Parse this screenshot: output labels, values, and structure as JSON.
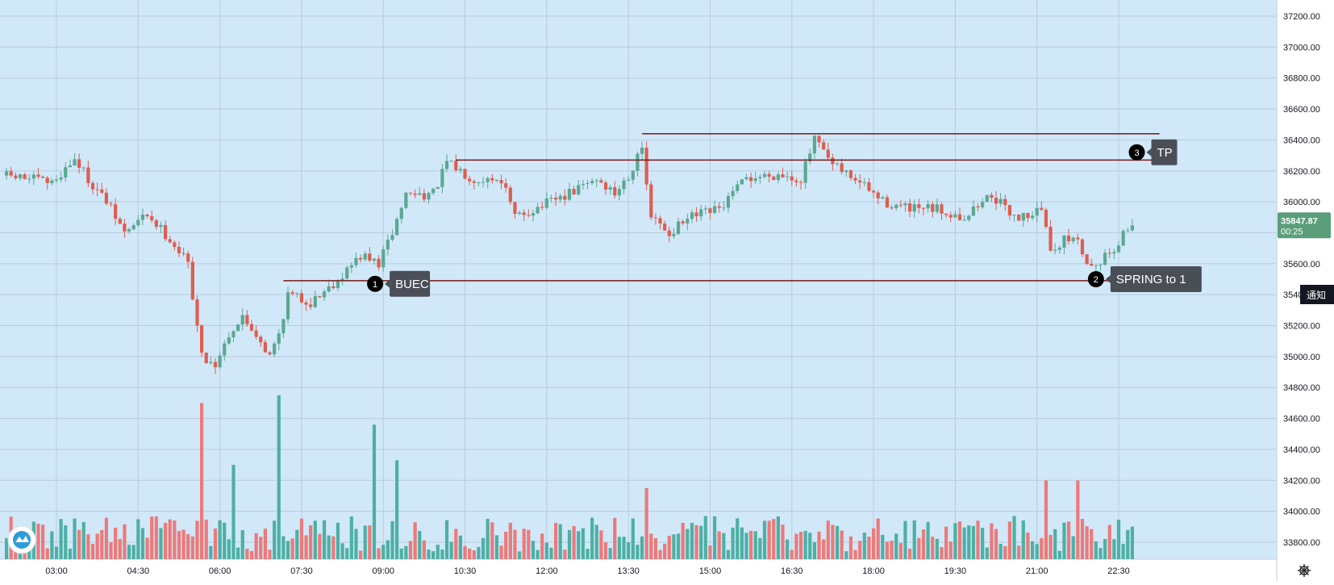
{
  "colors": {
    "plot_bg": "#d1e8f9",
    "axis_bg": "#ffffff",
    "grid": "#b9cbdd",
    "up": "#5ba892",
    "down": "#dd5e4f",
    "vol_up": "#4db0a4",
    "vol_down": "#ec7a7a",
    "level_line": "#7a1818",
    "callout_bg": "#4a4f57",
    "marker_bg": "#000000",
    "price_tag_bg": "#5a9e7a"
  },
  "widgets": {
    "price_tag": {
      "price": "35847.87",
      "countdown": "00:25"
    },
    "notify_badge": "通知",
    "logo_icon": "chart-logo-icon",
    "settings_icon": "gear-icon"
  },
  "annotations": [
    {
      "number": "1",
      "label": "BUEC",
      "time": "08:51",
      "price": 35470
    },
    {
      "number": "2",
      "label": "SPRING to 1",
      "time": "22:05",
      "price": 35500
    },
    {
      "number": "3",
      "label": "TP",
      "time": "22:50",
      "price": 36320
    }
  ],
  "chart_data": {
    "type": "candlestick",
    "title": "",
    "xlabel": "",
    "ylabel": "",
    "x_ticks": [
      "03:00",
      "04:30",
      "06:00",
      "07:30",
      "09:00",
      "10:30",
      "12:00",
      "13:30",
      "15:00",
      "16:30",
      "18:00",
      "19:30",
      "21:00",
      "22:30"
    ],
    "y_ticks": [
      37200,
      37000,
      36800,
      36600,
      36400,
      36200,
      36000,
      35800,
      35600,
      35400,
      35200,
      35000,
      34800,
      34600,
      34400,
      34200,
      34000,
      33800
    ],
    "y_tick_labels": [
      "37200.00",
      "37000.00",
      "36800.00",
      "36600.00",
      "36400.00",
      "36200.00",
      "36000.00",
      "35800.00",
      "35600.00",
      "35400.00",
      "35200.00",
      "35000.00",
      "34800.00",
      "34600.00",
      "34400.00",
      "34200.00",
      "34000.00",
      "33800.00"
    ],
    "ylim": [
      33700,
      37300
    ],
    "grid": true,
    "last_price": 35847.87,
    "horizontal_levels": [
      {
        "price": 36440,
        "from": "13:45",
        "to": "23:15"
      },
      {
        "price": 36270,
        "from": "10:20",
        "to": "23:15"
      },
      {
        "price": 35490,
        "from": "07:10",
        "to": "23:35"
      }
    ],
    "price_path": [
      [
        "02:05",
        36170
      ],
      [
        "02:35",
        36150
      ],
      [
        "03:00",
        36120
      ],
      [
        "03:25",
        36280
      ],
      [
        "03:40",
        36150
      ],
      [
        "04:00",
        36000
      ],
      [
        "04:20",
        35800
      ],
      [
        "04:45",
        35920
      ],
      [
        "05:10",
        35760
      ],
      [
        "05:30",
        35600
      ],
      [
        "05:45",
        35000
      ],
      [
        "06:00",
        34950
      ],
      [
        "06:15",
        35150
      ],
      [
        "06:30",
        35250
      ],
      [
        "06:45",
        35150
      ],
      [
        "07:00",
        35000
      ],
      [
        "07:10",
        35150
      ],
      [
        "07:20",
        35400
      ],
      [
        "07:45",
        35350
      ],
      [
        "08:15",
        35500
      ],
      [
        "08:40",
        35650
      ],
      [
        "09:00",
        35600
      ],
      [
        "09:15",
        35800
      ],
      [
        "09:30",
        36050
      ],
      [
        "10:00",
        36050
      ],
      [
        "10:15",
        36250
      ],
      [
        "10:45",
        36150
      ],
      [
        "11:15",
        36150
      ],
      [
        "11:30",
        35900
      ],
      [
        "11:50",
        35950
      ],
      [
        "12:30",
        36050
      ],
      [
        "13:00",
        36150
      ],
      [
        "13:20",
        36050
      ],
      [
        "13:40",
        36220
      ],
      [
        "13:48",
        36400
      ],
      [
        "14:00",
        35900
      ],
      [
        "14:20",
        35800
      ],
      [
        "14:45",
        35900
      ],
      [
        "15:15",
        35950
      ],
      [
        "15:45",
        36150
      ],
      [
        "16:20",
        36180
      ],
      [
        "16:45",
        36150
      ],
      [
        "17:00",
        36400
      ],
      [
        "17:20",
        36230
      ],
      [
        "17:45",
        36150
      ],
      [
        "18:15",
        36000
      ],
      [
        "18:45",
        35950
      ],
      [
        "19:15",
        35950
      ],
      [
        "19:45",
        35900
      ],
      [
        "20:15",
        36050
      ],
      [
        "20:30",
        35950
      ],
      [
        "20:45",
        35900
      ],
      [
        "21:10",
        35950
      ],
      [
        "21:20",
        35700
      ],
      [
        "21:45",
        35780
      ],
      [
        "22:05",
        35580
      ],
      [
        "22:30",
        35700
      ],
      [
        "22:47",
        35848
      ]
    ],
    "volume_spikes": [
      [
        "05:40",
        34700
      ],
      [
        "06:15",
        34300
      ],
      [
        "07:05",
        34750
      ],
      [
        "08:52",
        34560
      ],
      [
        "09:15",
        34330
      ],
      [
        "13:50",
        34150
      ],
      [
        "21:10",
        34200
      ],
      [
        "21:45",
        34200
      ]
    ]
  }
}
